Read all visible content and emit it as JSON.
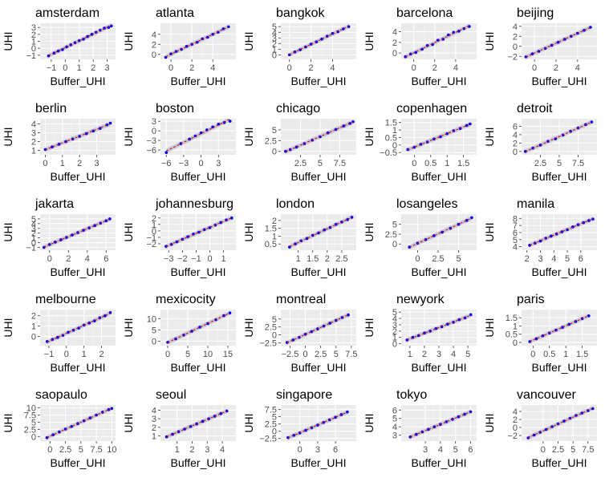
{
  "chart_data": {
    "type": "scatter",
    "layout": "facet-grid",
    "xlabel": "Buffer_UHI",
    "ylabel": "UHI",
    "colors": {
      "panel_bg": "#ebebeb",
      "grid_major": "#ffffff",
      "grid_minor": "#f4f4f4",
      "points": "#0000ff",
      "fit_line": "#cc0000",
      "confidence_band": "#a8a8c8",
      "tick_text": "#4d4d4d"
    },
    "panels": [
      {
        "title": "amsterdam",
        "xlim": [
          -1.8,
          3.6
        ],
        "ylim": [
          -1.6,
          3.6
        ],
        "xticks": [
          -1,
          0,
          1,
          2,
          3
        ],
        "yticks": [
          -1,
          0,
          1,
          2,
          3
        ],
        "x": [
          -1.2,
          -0.8,
          -0.5,
          -0.2,
          0.1,
          0.4,
          0.7,
          1.0,
          1.3,
          1.6,
          1.9,
          2.2,
          2.5,
          2.8,
          3.1,
          3.3
        ],
        "y": [
          -1.1,
          -0.7,
          -0.4,
          -0.2,
          0.2,
          0.5,
          0.8,
          1.1,
          1.3,
          1.7,
          2.0,
          2.3,
          2.6,
          2.9,
          3.0,
          3.2
        ]
      },
      {
        "title": "atlanta",
        "xlim": [
          -1.0,
          6.2
        ],
        "ylim": [
          -1.0,
          6.2
        ],
        "xticks": [
          0,
          2,
          4
        ],
        "yticks": [
          0,
          2,
          4
        ],
        "x": [
          -0.5,
          0.0,
          0.5,
          1.0,
          1.5,
          2.0,
          2.5,
          3.0,
          3.5,
          4.0,
          4.5,
          5.0,
          5.5
        ],
        "y": [
          -0.6,
          0.1,
          0.6,
          1.0,
          1.6,
          2.0,
          2.4,
          3.1,
          3.4,
          4.0,
          4.4,
          5.1,
          5.5
        ]
      },
      {
        "title": "bangkok",
        "xlim": [
          -0.8,
          6.2
        ],
        "ylim": [
          -0.8,
          5.6
        ],
        "xticks": [
          0,
          2,
          4
        ],
        "yticks": [
          0,
          1,
          2,
          3,
          4,
          5
        ],
        "x": [
          0.0,
          0.5,
          1.0,
          1.5,
          2.0,
          2.5,
          3.0,
          3.5,
          4.0,
          4.5,
          5.0,
          5.5
        ],
        "y": [
          0.0,
          0.5,
          0.9,
          1.4,
          1.9,
          2.3,
          2.8,
          3.3,
          3.8,
          4.1,
          4.6,
          5.0
        ]
      },
      {
        "title": "barcelona",
        "xlim": [
          -1.2,
          6.0
        ],
        "ylim": [
          -1.2,
          5.6
        ],
        "xticks": [
          0,
          2,
          4
        ],
        "yticks": [
          0,
          2,
          4
        ],
        "x": [
          -0.8,
          -0.3,
          0.2,
          0.8,
          1.3,
          1.8,
          2.3,
          2.8,
          3.3,
          3.8,
          4.3,
          4.8,
          5.3
        ],
        "y": [
          -0.7,
          -0.2,
          0.1,
          0.7,
          1.4,
          1.6,
          2.4,
          2.6,
          3.4,
          3.9,
          4.1,
          4.6,
          5.0
        ]
      },
      {
        "title": "beijing",
        "xlim": [
          -1.2,
          5.8
        ],
        "ylim": [
          -2.6,
          4.6
        ],
        "xticks": [
          0,
          2,
          4
        ],
        "yticks": [
          -2,
          0,
          2,
          4
        ],
        "x": [
          -0.8,
          -0.2,
          0.4,
          1.0,
          1.6,
          2.2,
          2.8,
          3.4,
          4.0,
          4.6,
          5.2
        ],
        "y": [
          -2.1,
          -1.5,
          -1.0,
          -0.4,
          0.2,
          0.8,
          1.4,
          2.0,
          2.6,
          3.2,
          3.8
        ]
      },
      {
        "title": "berlin",
        "xlim": [
          -0.3,
          4.1
        ],
        "ylim": [
          0.5,
          4.6
        ],
        "xticks": [
          0,
          1,
          2,
          3
        ],
        "yticks": [
          1,
          2,
          3,
          4
        ],
        "x": [
          0.0,
          0.4,
          0.8,
          1.2,
          1.6,
          2.0,
          2.4,
          2.8,
          3.2,
          3.6,
          3.8
        ],
        "y": [
          1.1,
          1.4,
          1.7,
          2.0,
          2.3,
          2.6,
          2.9,
          3.2,
          3.5,
          3.9,
          4.1
        ]
      },
      {
        "title": "boston",
        "xlim": [
          -7.0,
          6.0
        ],
        "ylim": [
          -7.5,
          3.8
        ],
        "xticks": [
          -6,
          -3,
          0,
          3
        ],
        "yticks": [
          -6,
          -3,
          0,
          3
        ],
        "x": [
          -6.0,
          -3.5,
          -2.0,
          -1.0,
          0.0,
          1.0,
          2.0,
          3.0,
          4.0,
          5.0
        ],
        "y": [
          -6.8,
          -4.0,
          -2.6,
          -1.6,
          -0.6,
          0.3,
          1.2,
          2.1,
          2.6,
          3.0
        ]
      },
      {
        "title": "chicago",
        "xlim": [
          0.0,
          9.6
        ],
        "ylim": [
          -0.8,
          7.6
        ],
        "xticks": [
          2.5,
          5.0,
          7.5
        ],
        "yticks": [
          0.0,
          2.5,
          5.0
        ],
        "x": [
          0.6,
          1.2,
          2.0,
          3.0,
          4.0,
          5.0,
          6.0,
          7.0,
          8.0,
          8.8,
          9.2
        ],
        "y": [
          0.0,
          0.4,
          1.0,
          1.8,
          2.6,
          3.4,
          4.3,
          5.1,
          5.9,
          6.5,
          6.9
        ]
      },
      {
        "title": "copenhagen",
        "xlim": [
          -0.4,
          1.9
        ],
        "ylim": [
          -0.65,
          1.75
        ],
        "xticks": [
          0.0,
          0.5,
          1.0,
          1.5
        ],
        "yticks": [
          -0.5,
          0.0,
          0.5,
          1.0,
          1.5
        ],
        "x": [
          -0.2,
          0.0,
          0.2,
          0.4,
          0.6,
          0.8,
          1.0,
          1.2,
          1.4,
          1.6,
          1.7
        ],
        "y": [
          -0.3,
          -0.15,
          0.05,
          0.2,
          0.4,
          0.55,
          0.75,
          0.95,
          1.1,
          1.3,
          1.4
        ]
      },
      {
        "title": "detroit",
        "xlim": [
          0.0,
          10.0
        ],
        "ylim": [
          -0.8,
          7.8
        ],
        "xticks": [
          2.5,
          5.0,
          7.5
        ],
        "yticks": [
          0,
          2,
          4,
          6
        ],
        "x": [
          0.5,
          1.5,
          2.5,
          3.5,
          4.5,
          5.5,
          6.5,
          7.5,
          8.5,
          9.3
        ],
        "y": [
          0.0,
          0.8,
          1.5,
          2.4,
          3.0,
          3.9,
          4.8,
          5.6,
          6.4,
          7.0
        ]
      },
      {
        "title": "jakarta",
        "xlim": [
          -1.0,
          7.0
        ],
        "ylim": [
          -1.6,
          6.0
        ],
        "xticks": [
          0,
          2,
          4,
          6
        ],
        "yticks": [
          -1,
          0,
          1,
          2,
          3,
          4,
          5
        ],
        "x": [
          -0.6,
          0.0,
          0.6,
          1.2,
          1.8,
          2.4,
          3.0,
          3.6,
          4.2,
          4.8,
          5.4,
          6.0,
          6.4
        ],
        "y": [
          -1.0,
          -0.4,
          0.1,
          0.6,
          1.1,
          1.6,
          2.1,
          2.6,
          3.1,
          3.6,
          4.1,
          4.6,
          5.0
        ]
      },
      {
        "title": "johannesburg",
        "xlim": [
          -3.6,
          1.9
        ],
        "ylim": [
          -3.0,
          2.6
        ],
        "xticks": [
          -3,
          -2,
          -1,
          0,
          1
        ],
        "yticks": [
          -2,
          -1,
          0,
          1,
          2
        ],
        "x": [
          -3.2,
          -2.8,
          -2.4,
          -2.0,
          -1.6,
          -1.2,
          -0.8,
          -0.4,
          0.0,
          0.4,
          0.8,
          1.2,
          1.6
        ],
        "y": [
          -2.4,
          -2.1,
          -1.7,
          -1.3,
          -0.9,
          -0.5,
          -0.2,
          0.2,
          0.5,
          0.9,
          1.3,
          1.7,
          2.0
        ]
      },
      {
        "title": "london",
        "xlim": [
          0.4,
          3.0
        ],
        "ylim": [
          0.1,
          2.4
        ],
        "xticks": [
          1.0,
          1.5,
          2.0,
          2.5
        ],
        "yticks": [
          0.5,
          1.0,
          1.5,
          2.0
        ],
        "x": [
          0.7,
          0.9,
          1.1,
          1.3,
          1.5,
          1.7,
          1.9,
          2.1,
          2.3,
          2.5,
          2.7,
          2.85
        ],
        "y": [
          0.3,
          0.5,
          0.7,
          0.85,
          1.05,
          1.2,
          1.4,
          1.55,
          1.75,
          1.9,
          2.05,
          2.2
        ]
      },
      {
        "title": "losangeles",
        "xlim": [
          -2.0,
          7.2
        ],
        "ylim": [
          -1.6,
          7.6
        ],
        "xticks": [
          0.0,
          2.5,
          5.0
        ],
        "yticks": [
          0.0,
          2.5,
          5.0
        ],
        "x": [
          -1.0,
          0.0,
          1.0,
          2.0,
          3.0,
          4.0,
          5.0,
          6.0,
          6.6
        ],
        "y": [
          -0.8,
          0.2,
          1.1,
          2.1,
          3.0,
          4.0,
          5.0,
          6.0,
          6.7
        ]
      },
      {
        "title": "manila",
        "xlim": [
          1.6,
          7.2
        ],
        "ylim": [
          3.5,
          8.6
        ],
        "xticks": [
          2,
          3,
          4,
          5,
          6
        ],
        "yticks": [
          4,
          5,
          6,
          7,
          8
        ],
        "x": [
          2.2,
          2.6,
          3.0,
          3.4,
          3.8,
          4.2,
          4.6,
          5.0,
          5.4,
          5.8,
          6.2,
          6.6,
          6.9
        ],
        "y": [
          4.2,
          4.5,
          4.8,
          5.2,
          5.5,
          5.8,
          6.1,
          6.4,
          6.8,
          7.1,
          7.4,
          7.7,
          7.9
        ]
      },
      {
        "title": "melbourne",
        "xlim": [
          -1.5,
          2.8
        ],
        "ylim": [
          -0.9,
          2.6
        ],
        "xticks": [
          -1,
          0,
          1,
          2
        ],
        "yticks": [
          0,
          1,
          2
        ],
        "x": [
          -1.1,
          -0.8,
          -0.5,
          -0.2,
          0.1,
          0.4,
          0.7,
          1.0,
          1.3,
          1.6,
          1.9,
          2.2,
          2.5
        ],
        "y": [
          -0.5,
          -0.3,
          -0.1,
          0.1,
          0.4,
          0.6,
          0.8,
          1.1,
          1.3,
          1.5,
          1.8,
          2.0,
          2.3
        ]
      },
      {
        "title": "mexicocity",
        "xlim": [
          -1.8,
          17.0
        ],
        "ylim": [
          -2.0,
          14.0
        ],
        "xticks": [
          0,
          5,
          10,
          15
        ],
        "yticks": [
          0,
          5,
          10
        ],
        "x": [
          0.0,
          2.0,
          4.0,
          6.0,
          8.0,
          10.0,
          12.0,
          14.0,
          15.5
        ],
        "y": [
          -0.5,
          1.0,
          2.7,
          4.4,
          6.2,
          7.8,
          9.5,
          11.3,
          12.5
        ]
      },
      {
        "title": "montreal",
        "xlim": [
          -4.0,
          8.3
        ],
        "ylim": [
          -3.4,
          8.0
        ],
        "xticks": [
          -2.5,
          0.0,
          2.5,
          5.0,
          7.5
        ],
        "yticks": [
          -2.5,
          0.0,
          2.5,
          5.0
        ],
        "x": [
          -3.0,
          -2.0,
          -1.0,
          0.0,
          1.0,
          2.0,
          3.0,
          4.0,
          5.0,
          6.0,
          7.0
        ],
        "y": [
          -2.4,
          -1.6,
          -0.8,
          0.2,
          1.0,
          1.9,
          2.8,
          3.7,
          4.6,
          5.5,
          6.3
        ]
      },
      {
        "title": "newyork",
        "xlim": [
          0.4,
          5.6
        ],
        "ylim": [
          -0.3,
          5.4
        ],
        "xticks": [
          1,
          2,
          3,
          4,
          5
        ],
        "yticks": [
          0,
          1,
          2,
          3,
          4,
          5
        ],
        "x": [
          0.8,
          1.2,
          1.6,
          2.0,
          2.4,
          2.8,
          3.2,
          3.6,
          4.0,
          4.4,
          4.8,
          5.2
        ],
        "y": [
          0.6,
          1.0,
          1.3,
          1.7,
          2.0,
          2.4,
          2.7,
          3.1,
          3.4,
          3.8,
          4.1,
          4.6
        ]
      },
      {
        "title": "paris",
        "xlim": [
          -0.35,
          1.95
        ],
        "ylim": [
          -0.2,
          2.0
        ],
        "xticks": [
          0.0,
          0.5,
          1.0,
          1.5
        ],
        "yticks": [
          0.0,
          0.5,
          1.0,
          1.5
        ],
        "x": [
          -0.1,
          0.1,
          0.3,
          0.5,
          0.7,
          0.9,
          1.1,
          1.3,
          1.5,
          1.7
        ],
        "y": [
          0.05,
          0.22,
          0.4,
          0.57,
          0.75,
          0.92,
          1.1,
          1.27,
          1.45,
          1.62
        ]
      },
      {
        "title": "saopaulo",
        "xlim": [
          -1.6,
          10.6
        ],
        "ylim": [
          -1.6,
          11.0
        ],
        "xticks": [
          0.0,
          2.5,
          5.0,
          7.5,
          10.0
        ],
        "yticks": [
          0.0,
          2.5,
          5.0,
          7.5,
          10.0
        ],
        "x": [
          -0.5,
          0.5,
          1.5,
          2.5,
          3.5,
          4.5,
          5.5,
          6.5,
          7.5,
          8.5,
          9.5,
          10.0
        ],
        "y": [
          -0.4,
          0.6,
          1.6,
          2.6,
          3.5,
          4.5,
          5.5,
          6.5,
          7.5,
          8.5,
          9.4,
          9.8
        ]
      },
      {
        "title": "seoul",
        "xlim": [
          -0.1,
          4.9
        ],
        "ylim": [
          0.4,
          4.6
        ],
        "xticks": [
          1,
          2,
          3,
          4
        ],
        "yticks": [
          1,
          2,
          3,
          4
        ],
        "x": [
          0.3,
          0.7,
          1.1,
          1.5,
          1.9,
          2.3,
          2.7,
          3.1,
          3.5,
          3.9,
          4.3
        ],
        "y": [
          0.9,
          1.2,
          1.5,
          1.8,
          2.1,
          2.4,
          2.7,
          3.0,
          3.3,
          3.6,
          3.9
        ]
      },
      {
        "title": "singapore",
        "xlim": [
          -3.2,
          9.5
        ],
        "ylim": [
          -3.4,
          9.0
        ],
        "xticks": [
          0,
          3,
          6
        ],
        "yticks": [
          -2.5,
          0.0,
          2.5,
          5.0,
          7.5
        ],
        "x": [
          -2.0,
          -1.0,
          0.0,
          1.0,
          2.0,
          3.0,
          4.0,
          5.0,
          6.0,
          7.0,
          8.0
        ],
        "y": [
          -2.2,
          -1.4,
          -0.6,
          0.3,
          1.2,
          2.1,
          3.0,
          3.9,
          4.8,
          5.7,
          6.6
        ]
      },
      {
        "title": "tokyo",
        "xlim": [
          1.4,
          6.4
        ],
        "ylim": [
          2.3,
          6.6
        ],
        "xticks": [
          3,
          4,
          5,
          6
        ],
        "yticks": [
          3,
          4,
          5,
          6
        ],
        "x": [
          2.0,
          2.4,
          2.8,
          3.2,
          3.6,
          4.0,
          4.4,
          4.8,
          5.2,
          5.6,
          6.0
        ],
        "y": [
          2.8,
          3.1,
          3.4,
          3.7,
          4.0,
          4.3,
          4.6,
          4.9,
          5.2,
          5.5,
          5.8
        ]
      },
      {
        "title": "vancouver",
        "xlim": [
          -3.6,
          9.0
        ],
        "ylim": [
          -3.4,
          5.6
        ],
        "xticks": [
          0.0,
          2.5,
          5.0,
          7.5
        ],
        "yticks": [
          -2,
          0,
          2,
          4
        ],
        "x": [
          -2.5,
          -1.5,
          -0.5,
          0.5,
          1.5,
          2.5,
          3.5,
          4.5,
          5.5,
          6.5,
          7.5,
          8.3
        ],
        "y": [
          -2.6,
          -1.9,
          -1.2,
          -0.5,
          0.2,
          0.9,
          1.6,
          2.3,
          3.0,
          3.6,
          4.2,
          4.7
        ]
      }
    ]
  }
}
